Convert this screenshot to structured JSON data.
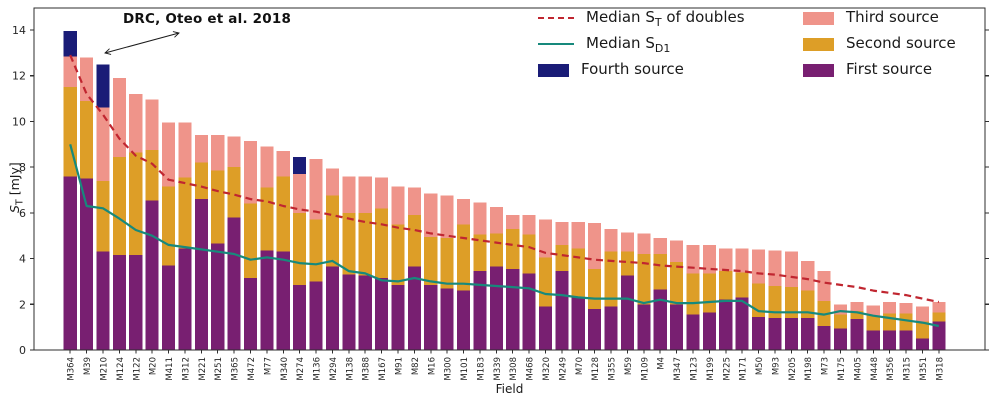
{
  "figure": {
    "annotation": {
      "text": "DRC, Oteo et al. 2018"
    },
    "xlabel": "Field",
    "ylabel": {
      "base": "S",
      "sub": "T",
      "rest": " [mJy]"
    }
  },
  "legend": {
    "position": "upper right, two columns, no frame",
    "entries": [
      {
        "id": "median-st-doubles",
        "marker": "red-dashed-line",
        "color": "#c02630",
        "pre": "Median S",
        "sub": "T",
        "post": " of doubles"
      },
      {
        "id": "median-sd1",
        "marker": "teal-solid-line",
        "color": "#17897c",
        "pre": "Median S",
        "sub": "D1",
        "post": ""
      },
      {
        "id": "fourth-source",
        "marker": "navy-patch",
        "color": "#1a1c77",
        "pre": "Fourth source",
        "sub": "",
        "post": ""
      },
      {
        "id": "third-source",
        "marker": "salmon-patch",
        "color": "#ef948a",
        "pre": "Third source",
        "sub": "",
        "post": ""
      },
      {
        "id": "second-source",
        "marker": "orange-patch",
        "color": "#dd9e27",
        "pre": "Second source",
        "sub": "",
        "post": ""
      },
      {
        "id": "first-source",
        "marker": "purple-patch",
        "color": "#781f71",
        "pre": "First source",
        "sub": "",
        "post": ""
      }
    ]
  },
  "chart_data": {
    "type": "bar",
    "stacked": true,
    "title": "",
    "xlabel": "Field",
    "ylabel": "S_T [mJy]",
    "ylim": [
      0,
      15
    ],
    "y_ticks": [
      0,
      2,
      4,
      6,
      8,
      10,
      12,
      14
    ],
    "grid": false,
    "legend_position": "upper right",
    "annotation": "DRC, Oteo et al. 2018 (double-headed arrow pointing to M39/M210 bar tops)",
    "categories": [
      "M364",
      "M39",
      "M210",
      "M124",
      "M122",
      "M20",
      "M411",
      "M312",
      "M221",
      "M251",
      "M365",
      "M472",
      "M77",
      "M340",
      "M274",
      "M136",
      "M294",
      "M138",
      "M388",
      "M167",
      "M91",
      "M82",
      "M16",
      "M300",
      "M101",
      "M183",
      "M339",
      "M308",
      "M468",
      "M320",
      "M249",
      "M70",
      "M128",
      "M355",
      "M59",
      "M109",
      "M4",
      "M347",
      "M123",
      "M199",
      "M225",
      "M171",
      "M50",
      "M93",
      "M205",
      "M198",
      "M73",
      "M175",
      "M405",
      "M448",
      "M356",
      "M315",
      "M351",
      "M318"
    ],
    "series": [
      {
        "name": "First source",
        "color": "#781f71",
        "values": [
          7.6,
          7.5,
          4.3,
          4.15,
          4.15,
          6.55,
          3.7,
          4.45,
          6.6,
          4.65,
          5.8,
          3.15,
          4.35,
          4.3,
          2.85,
          3.0,
          3.65,
          3.3,
          3.25,
          3.15,
          2.85,
          3.65,
          2.85,
          2.7,
          2.6,
          3.45,
          3.65,
          3.55,
          3.35,
          1.9,
          3.45,
          2.3,
          1.8,
          1.9,
          3.25,
          2.0,
          2.65,
          2.0,
          1.55,
          1.65,
          2.2,
          2.3,
          1.45,
          1.4,
          1.4,
          1.4,
          1.05,
          0.95,
          1.35,
          0.85,
          0.85,
          0.85,
          0.5,
          1.25
        ]
      },
      {
        "name": "Second source",
        "color": "#dd9e27",
        "values": [
          3.9,
          3.4,
          3.1,
          4.3,
          4.5,
          2.2,
          3.45,
          3.1,
          1.6,
          3.2,
          2.2,
          3.25,
          2.75,
          3.3,
          3.15,
          2.7,
          3.1,
          2.7,
          2.75,
          3.05,
          2.65,
          2.25,
          2.1,
          2.2,
          2.9,
          1.6,
          1.45,
          1.75,
          1.7,
          2.15,
          1.15,
          2.15,
          1.75,
          2.4,
          1.05,
          2.2,
          1.55,
          1.85,
          1.8,
          1.7,
          1.25,
          1.1,
          1.45,
          1.4,
          1.35,
          1.2,
          1.1,
          0.6,
          0.35,
          0.65,
          0.75,
          0.75,
          0.75,
          0.4
        ]
      },
      {
        "name": "Third source",
        "color": "#ef948a",
        "values": [
          1.35,
          1.9,
          3.2,
          3.45,
          2.55,
          2.2,
          2.8,
          2.4,
          1.2,
          1.55,
          1.35,
          2.75,
          1.8,
          1.1,
          1.7,
          2.65,
          1.2,
          1.6,
          1.6,
          1.35,
          1.65,
          1.2,
          1.9,
          1.85,
          1.1,
          1.4,
          1.15,
          0.6,
          0.85,
          1.65,
          1.0,
          1.15,
          2.0,
          1.0,
          0.85,
          0.9,
          0.7,
          0.95,
          1.25,
          1.25,
          1.0,
          1.05,
          1.5,
          1.55,
          1.55,
          1.3,
          1.3,
          0.45,
          0.4,
          0.45,
          0.5,
          0.45,
          0.65,
          0.45
        ]
      },
      {
        "name": "Fourth source",
        "color": "#1a1c77",
        "values": [
          1.1,
          0,
          1.9,
          0,
          0,
          0,
          0,
          0,
          0,
          0,
          0,
          0,
          0,
          0,
          0.75,
          0,
          0,
          0,
          0,
          0,
          0,
          0,
          0,
          0,
          0,
          0,
          0,
          0,
          0,
          0,
          0,
          0,
          0,
          0,
          0,
          0,
          0,
          0,
          0,
          0,
          0,
          0,
          0,
          0,
          0,
          0,
          0,
          0,
          0,
          0,
          0,
          0,
          0,
          0
        ]
      }
    ],
    "lines": [
      {
        "name": "Median S_T of doubles",
        "color": "#c02630",
        "dashed": true,
        "values": [
          12.9,
          11.2,
          10.3,
          9.25,
          8.5,
          8.15,
          7.45,
          7.3,
          7.15,
          6.95,
          6.8,
          6.6,
          6.5,
          6.3,
          6.15,
          6.05,
          5.9,
          5.75,
          5.6,
          5.5,
          5.35,
          5.25,
          5.1,
          5.0,
          4.9,
          4.8,
          4.7,
          4.6,
          4.5,
          4.25,
          4.15,
          4.05,
          3.95,
          3.9,
          3.85,
          3.8,
          3.7,
          3.65,
          3.6,
          3.55,
          3.5,
          3.45,
          3.35,
          3.3,
          3.2,
          3.1,
          2.95,
          2.85,
          2.75,
          2.6,
          2.5,
          2.4,
          2.25,
          2.1
        ]
      },
      {
        "name": "Median S_D1",
        "color": "#17897c",
        "dashed": false,
        "values": [
          9.0,
          6.3,
          6.2,
          5.75,
          5.25,
          5.0,
          4.6,
          4.5,
          4.4,
          4.3,
          4.2,
          3.95,
          4.05,
          3.95,
          3.8,
          3.75,
          3.9,
          3.45,
          3.35,
          3.05,
          3.0,
          3.15,
          3.0,
          2.9,
          2.9,
          2.85,
          2.8,
          2.75,
          2.7,
          2.45,
          2.4,
          2.3,
          2.25,
          2.25,
          2.25,
          2.05,
          2.2,
          2.05,
          2.05,
          2.1,
          2.15,
          2.15,
          1.7,
          1.65,
          1.65,
          1.65,
          1.55,
          1.7,
          1.65,
          1.5,
          1.4,
          1.3,
          1.2,
          1.05
        ]
      }
    ]
  }
}
